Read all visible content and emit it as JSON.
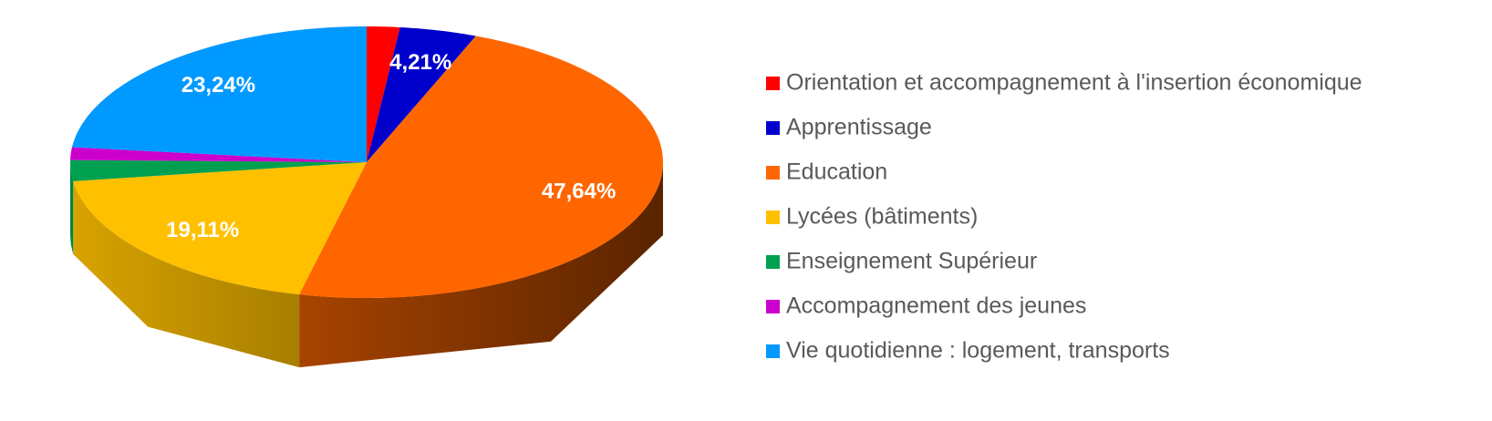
{
  "chart_data": {
    "type": "pie3d",
    "categories": [
      "Orientation et accompagnement à l'insertion économique",
      "Apprentissage",
      "Education",
      "Lycées (bâtiments)",
      "Enseignement Supérieur",
      "Accompagnement des jeunes",
      "Vie quotidienne : logement, transports"
    ],
    "values": [
      1.8,
      4.21,
      47.64,
      19.11,
      2.5,
      1.5,
      23.24
    ],
    "value_labels": [
      null,
      "4,21%",
      "47,64%",
      "19,11%",
      null,
      null,
      "23,24%"
    ],
    "colors": [
      "#ff0000",
      "#0000cc",
      "#ff6600",
      "#ffc000",
      "#00a050",
      "#cc00cc",
      "#0099ff"
    ],
    "legend": "right"
  }
}
